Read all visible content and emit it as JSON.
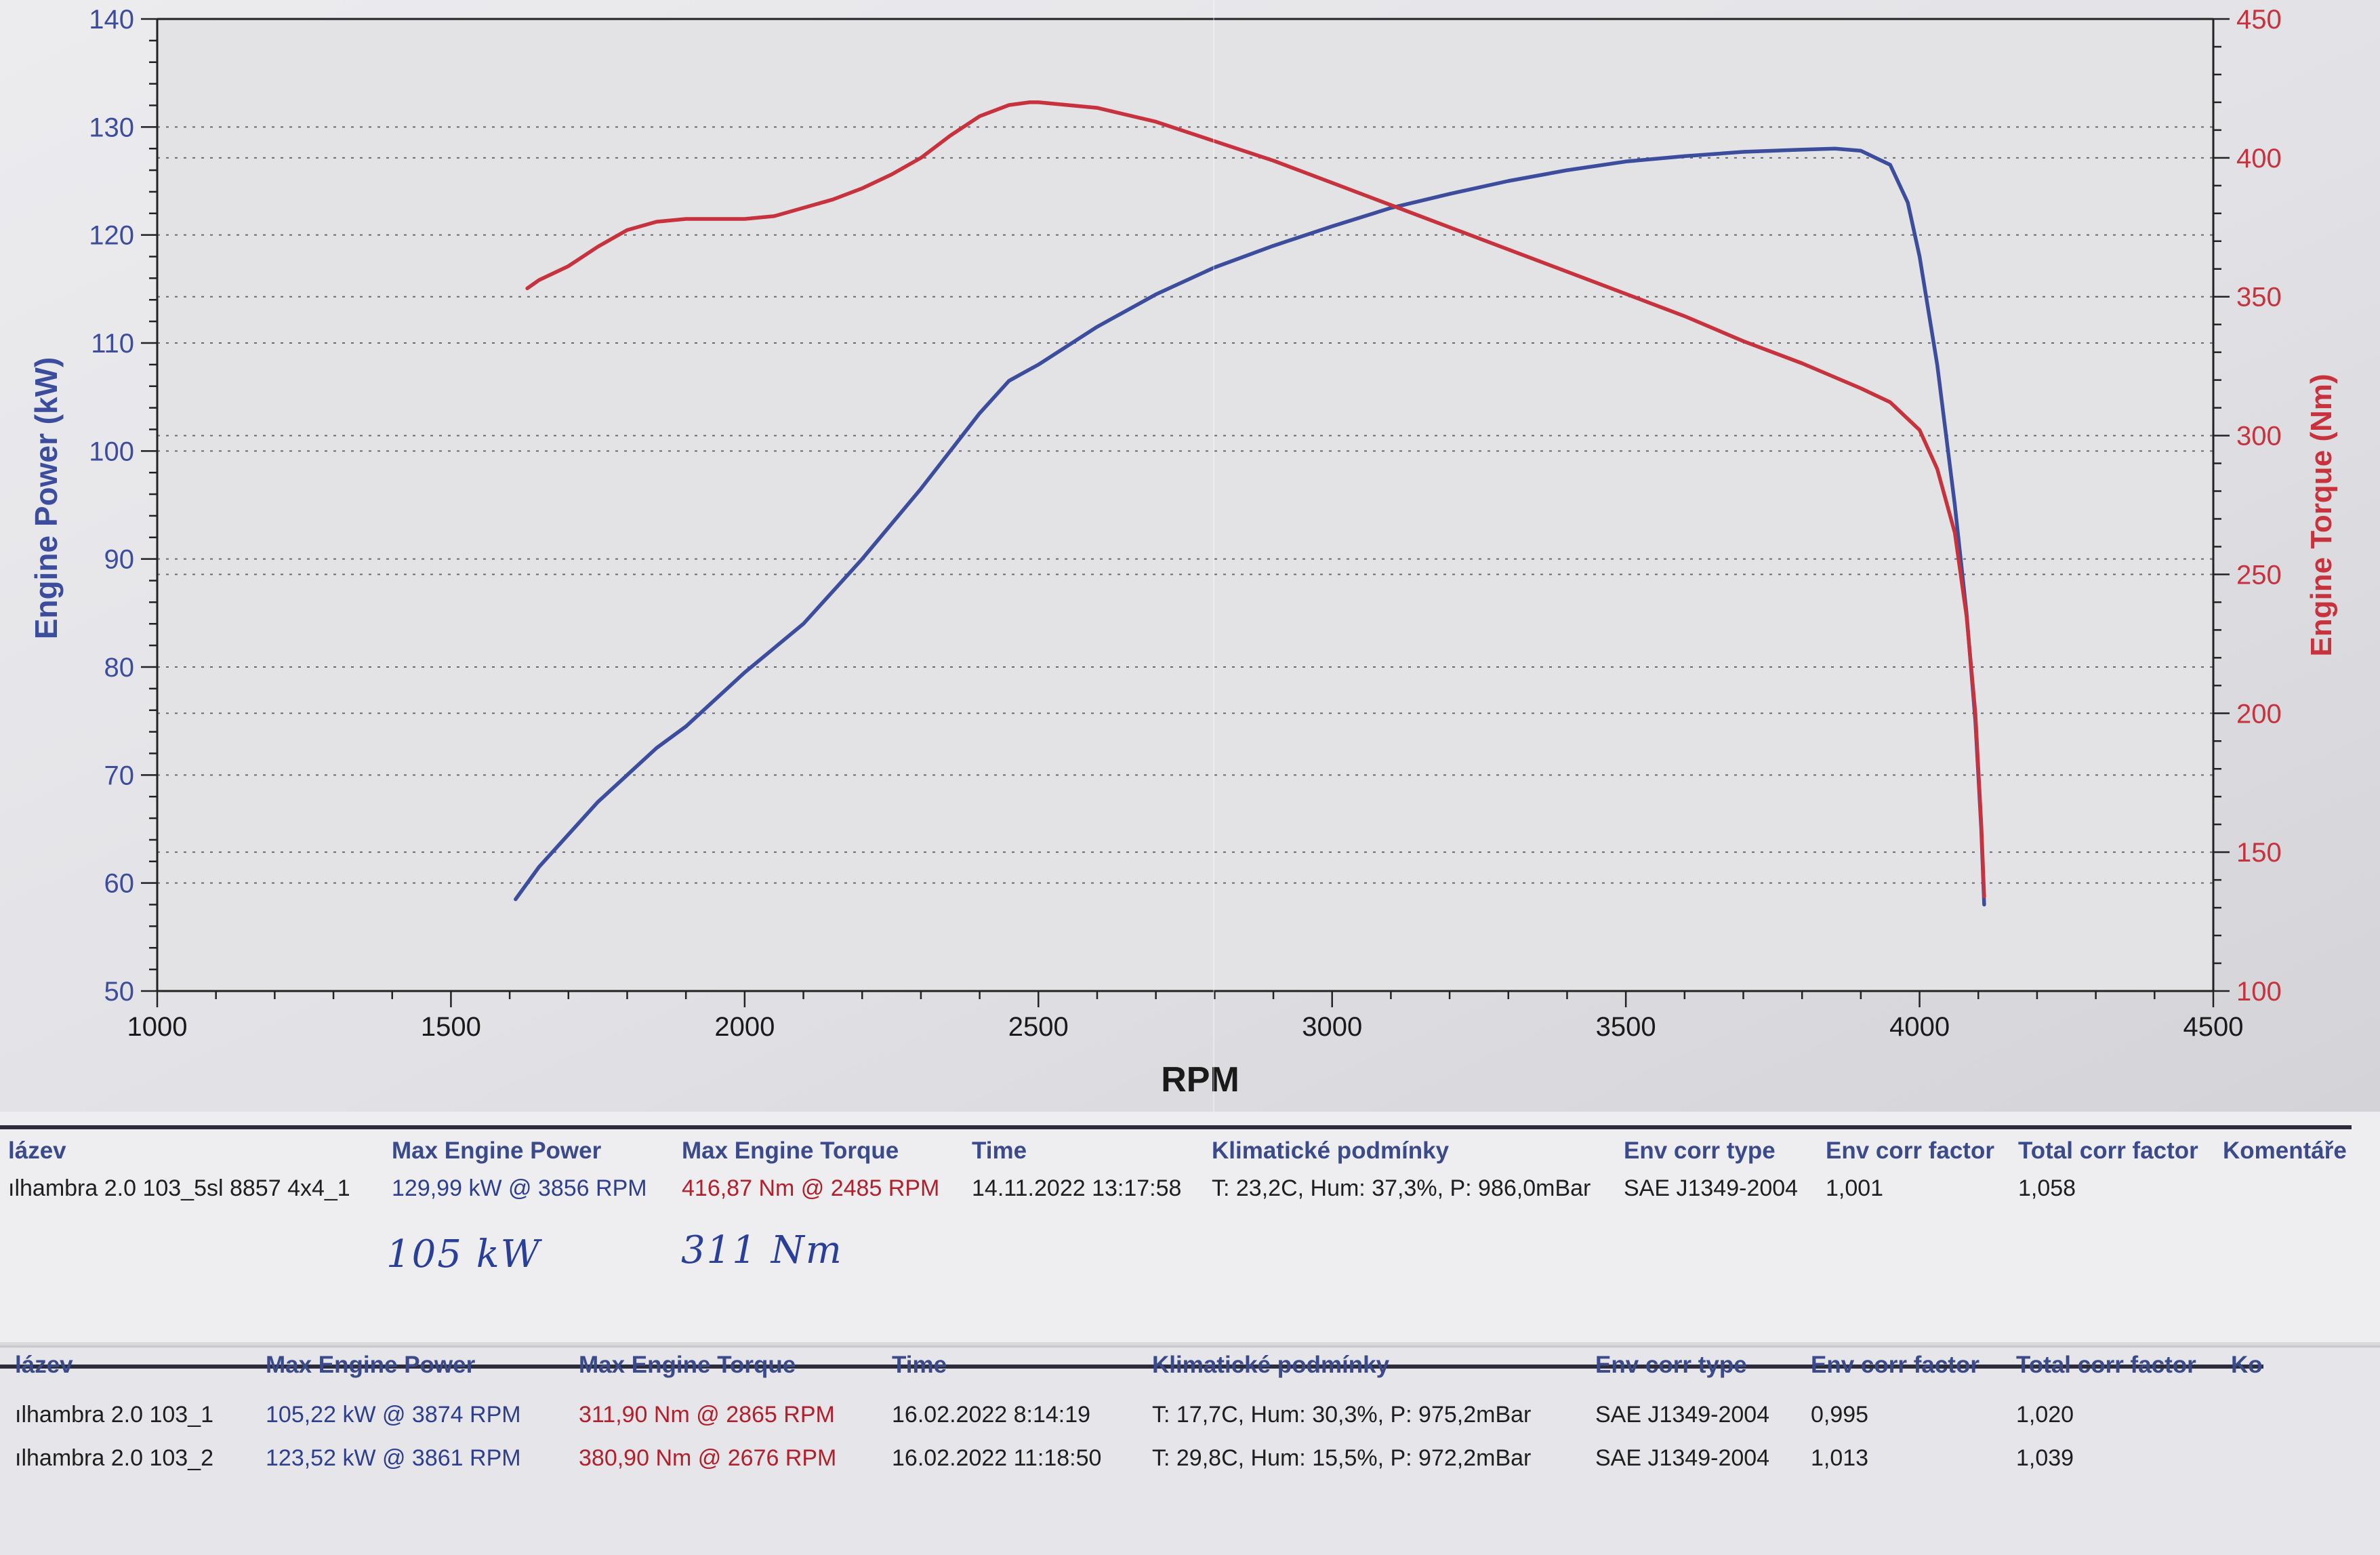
{
  "chart_data": {
    "type": "line",
    "title": "",
    "xlabel": "RPM",
    "ylabel_left": "Engine Power (kW)",
    "ylabel_right": "Engine Torque (Nm)",
    "xlim": [
      1000,
      4500
    ],
    "ylim_left": [
      50,
      140
    ],
    "ylim_right": [
      100,
      450
    ],
    "grid": true,
    "x_ticks": [
      1000,
      1500,
      2000,
      2500,
      3000,
      3500,
      4000,
      4500
    ],
    "y_left_ticks": [
      50,
      60,
      70,
      80,
      90,
      100,
      110,
      120,
      130,
      140
    ],
    "y_right_ticks": [
      100,
      150,
      200,
      250,
      300,
      350,
      400,
      450
    ],
    "colors": {
      "power": "#3b4d9c",
      "torque": "#c8323d"
    },
    "series": [
      {
        "name": "Engine Power",
        "axis": "left",
        "color": "#3b4d9c",
        "x": [
          1610,
          1650,
          1700,
          1750,
          1800,
          1850,
          1900,
          2000,
          2100,
          2200,
          2300,
          2350,
          2400,
          2450,
          2500,
          2600,
          2700,
          2800,
          2900,
          3000,
          3100,
          3200,
          3300,
          3400,
          3500,
          3600,
          3700,
          3800,
          3856,
          3900,
          3950,
          3980,
          4000,
          4030,
          4060,
          4080,
          4095,
          4105,
          4110
        ],
        "values": [
          58.5,
          61.5,
          64.5,
          67.5,
          70.0,
          72.5,
          74.5,
          79.5,
          84.0,
          90.0,
          96.5,
          100.0,
          103.5,
          106.5,
          108.0,
          111.5,
          114.5,
          117.0,
          119.0,
          120.8,
          122.5,
          123.8,
          125.0,
          126.0,
          126.8,
          127.3,
          127.7,
          127.9,
          128.0,
          127.8,
          126.5,
          123.0,
          118.0,
          108.0,
          95.0,
          85.0,
          75.0,
          65.0,
          58.0
        ]
      },
      {
        "name": "Engine Torque",
        "axis": "right",
        "color": "#c8323d",
        "x": [
          1630,
          1650,
          1700,
          1750,
          1800,
          1850,
          1900,
          1950,
          2000,
          2050,
          2100,
          2150,
          2200,
          2250,
          2300,
          2350,
          2400,
          2450,
          2485,
          2500,
          2550,
          2600,
          2700,
          2800,
          2900,
          3000,
          3100,
          3200,
          3300,
          3400,
          3500,
          3600,
          3700,
          3800,
          3900,
          3950,
          4000,
          4030,
          4060,
          4080,
          4095,
          4105,
          4110
        ],
        "values": [
          353,
          356,
          361,
          368,
          374,
          377,
          378,
          378,
          378,
          379,
          382,
          385,
          389,
          394,
          400,
          408,
          415,
          419,
          420,
          420,
          419,
          418,
          413,
          406,
          399,
          391,
          383,
          375,
          367,
          359,
          351,
          343,
          334,
          326,
          317,
          312,
          302,
          288,
          265,
          235,
          200,
          160,
          134
        ]
      }
    ]
  },
  "sheet1": {
    "headers": [
      "lázev",
      "Max Engine Power",
      "Max Engine Torque",
      "Time",
      "Klimatické podmínky",
      "Env corr type",
      "Env corr factor",
      "Total corr factor",
      "Komentáře"
    ],
    "row": [
      "ılhambra 2.0 103_5sl 8857 4x4_1",
      "129,99 kW @ 3856 RPM",
      "416,87 Nm @ 2485 RPM",
      "14.11.2022 13:17:58",
      "T: 23,2C, Hum: 37,3%, P: 986,0mBar",
      "SAE J1349-2004",
      "1,001",
      "1,058"
    ],
    "note_power": "105 kW",
    "note_torque": "311 Nm"
  },
  "sheet2": {
    "headers": [
      "lázev",
      "Max Engine Power",
      "Max Engine Torque",
      "Time",
      "Klimatické podmínky",
      "Env corr type",
      "Env corr factor",
      "Total corr factor",
      "Ko"
    ],
    "rows": [
      [
        "ılhambra 2.0 103_1",
        "105,22 kW @ 3874 RPM",
        "311,90 Nm @ 2865 RPM",
        "16.02.2022 8:14:19",
        "T: 17,7C, Hum: 30,3%, P: 975,2mBar",
        "SAE J1349-2004",
        "0,995",
        "1,020"
      ],
      [
        "ılhambra 2.0 103_2",
        "123,52 kW @ 3861 RPM",
        "380,90 Nm @ 2676 RPM",
        "16.02.2022 11:18:50",
        "T: 29,8C, Hum: 15,5%, P: 972,2mBar",
        "SAE J1349-2004",
        "1,013",
        "1,039"
      ]
    ]
  }
}
